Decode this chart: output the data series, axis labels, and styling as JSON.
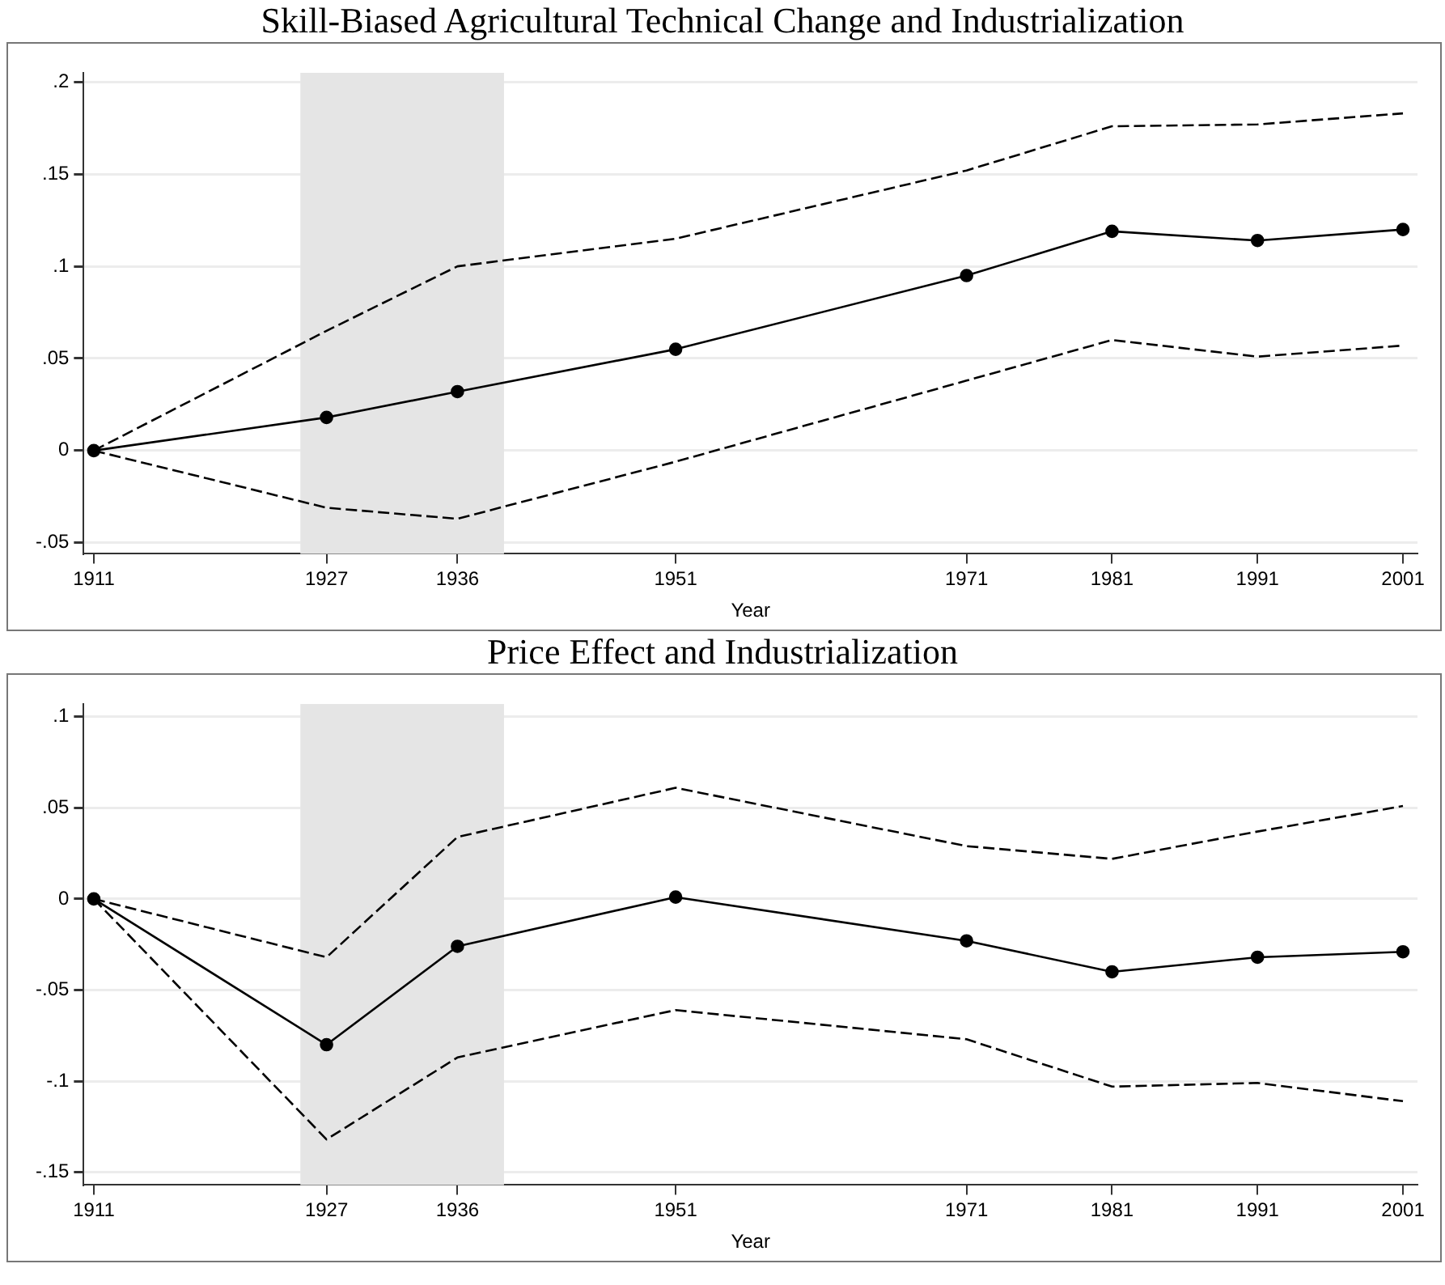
{
  "chart_data": [
    {
      "type": "line",
      "title": "Skill-Biased Agricultural Technical Change and Industrialization",
      "xlabel": "Year",
      "x": [
        1911,
        1927,
        1936,
        1951,
        1971,
        1981,
        1991,
        2001
      ],
      "series": [
        {
          "color": "#000000",
          "marker": "circle",
          "line_style": "solid",
          "values": [
            0,
            0.018,
            0.032,
            0.055,
            0.095,
            0.119,
            0.114,
            0.12
          ]
        },
        {
          "color": "#000000",
          "marker": "none",
          "line_style": "dashed",
          "values": [
            0,
            0.065,
            0.1,
            0.115,
            0.152,
            0.176,
            0.177,
            0.183
          ]
        },
        {
          "color": "#000000",
          "marker": "none",
          "line_style": "dashed",
          "values": [
            0,
            -0.031,
            -0.037,
            -0.006,
            0.038,
            0.06,
            0.051,
            0.057
          ]
        }
      ],
      "xlim": [
        1910.3,
        2002
      ],
      "xticks": [
        1911,
        1927,
        1936,
        1951,
        1971,
        1981,
        1991,
        2001
      ],
      "ylim": [
        -0.056,
        0.205
      ],
      "yticks": [
        {
          "value": -0.05,
          "label": "-.05"
        },
        0,
        {
          "value": 0.05,
          "label": ".05"
        },
        {
          "value": 0.1,
          "label": ".1"
        },
        {
          "value": 0.15,
          "label": ".15"
        },
        {
          "value": 0.2,
          "label": ".2"
        }
      ],
      "bands": [
        {
          "axis": "x",
          "from": 1925.2,
          "to": 1939.2,
          "color": "#e5e5e5"
        }
      ],
      "grid": "y",
      "legend": false
    },
    {
      "type": "line",
      "title": "Price Effect and Industrialization",
      "xlabel": "Year",
      "x": [
        1911,
        1927,
        1936,
        1951,
        1971,
        1981,
        1991,
        2001
      ],
      "series": [
        {
          "color": "#000000",
          "marker": "circle",
          "line_style": "solid",
          "values": [
            0,
            -0.08,
            -0.026,
            0.001,
            -0.023,
            -0.04,
            -0.032,
            -0.029
          ]
        },
        {
          "color": "#000000",
          "marker": "none",
          "line_style": "dashed",
          "values": [
            0,
            -0.032,
            0.034,
            0.061,
            0.029,
            0.022,
            0.037,
            0.051
          ]
        },
        {
          "color": "#000000",
          "marker": "none",
          "line_style": "dashed",
          "values": [
            0,
            -0.132,
            -0.087,
            -0.061,
            -0.077,
            -0.103,
            -0.101,
            -0.111
          ]
        }
      ],
      "xlim": [
        1910.3,
        2002
      ],
      "xticks": [
        1911,
        1927,
        1936,
        1951,
        1971,
        1981,
        1991,
        2001
      ],
      "ylim": [
        -0.157,
        0.107
      ],
      "yticks": [
        {
          "value": -0.15,
          "label": "-.15"
        },
        {
          "value": -0.1,
          "label": "-.1"
        },
        {
          "value": -0.05,
          "label": "-.05"
        },
        0,
        {
          "value": 0.05,
          "label": ".05"
        },
        {
          "value": 0.1,
          "label": ".1"
        }
      ],
      "bands": [
        {
          "axis": "x",
          "from": 1925.2,
          "to": 1939.2,
          "color": "#e5e5e5"
        }
      ],
      "grid": "y",
      "legend": false
    }
  ]
}
